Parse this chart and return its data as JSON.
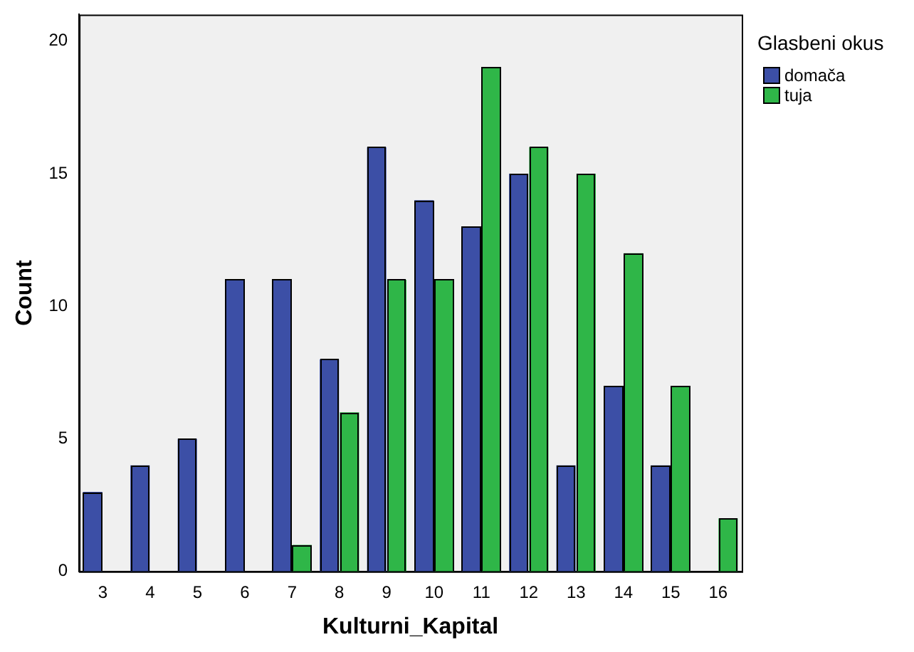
{
  "chart_data": {
    "type": "bar",
    "xlabel": "Kulturni_Kapital",
    "ylabel": "Count",
    "legend_title": "Glasbeni okus",
    "categories": [
      "3",
      "4",
      "5",
      "6",
      "7",
      "8",
      "9",
      "10",
      "11",
      "12",
      "13",
      "14",
      "15",
      "16"
    ],
    "series": [
      {
        "name": "domača",
        "color": "#3c4fa6",
        "values": [
          3,
          4,
          5,
          11,
          11,
          8,
          16,
          14,
          13,
          15,
          4,
          7,
          4,
          null
        ]
      },
      {
        "name": "tuja",
        "color": "#2fb648",
        "values": [
          null,
          null,
          null,
          null,
          1,
          6,
          11,
          11,
          19,
          16,
          15,
          12,
          7,
          2
        ]
      }
    ],
    "ylim": [
      0,
      21
    ],
    "yticks": [
      0,
      5,
      10,
      15,
      20
    ],
    "grid": false,
    "legend": "top right"
  }
}
